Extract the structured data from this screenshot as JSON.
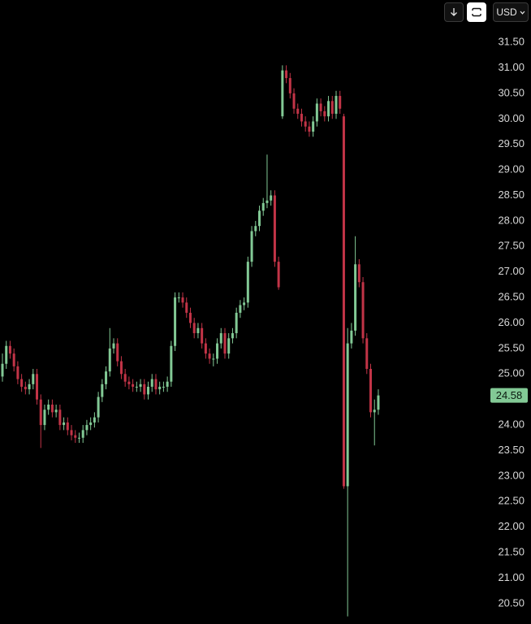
{
  "toolbar": {
    "currency": "USD"
  },
  "chart_data": {
    "type": "candlestick",
    "ylim": [
      20.1,
      32.33
    ],
    "yticks": [
      {
        "value": 20.5,
        "label": "20.50"
      },
      {
        "value": 21,
        "label": "21.00"
      },
      {
        "value": 21.5,
        "label": "21.50"
      },
      {
        "value": 22,
        "label": "22.00"
      },
      {
        "value": 22.5,
        "label": "22.50"
      },
      {
        "value": 23,
        "label": "23.00"
      },
      {
        "value": 23.5,
        "label": "23.50"
      },
      {
        "value": 24,
        "label": "24.00"
      },
      {
        "value": 24.5,
        "label": "24.50"
      },
      {
        "value": 25,
        "label": "25.00"
      },
      {
        "value": 25.5,
        "label": "25.50"
      },
      {
        "value": 26,
        "label": "26.00"
      },
      {
        "value": 26.5,
        "label": "26.50"
      },
      {
        "value": 27,
        "label": "27.00"
      },
      {
        "value": 27.5,
        "label": "27.50"
      },
      {
        "value": 28,
        "label": "28.00"
      },
      {
        "value": 28.5,
        "label": "28.50"
      },
      {
        "value": 29,
        "label": "29.00"
      },
      {
        "value": 29.5,
        "label": "29.50"
      },
      {
        "value": 30,
        "label": "30.00"
      },
      {
        "value": 30.5,
        "label": "30.50"
      },
      {
        "value": 31,
        "label": "31.00"
      },
      {
        "value": 31.5,
        "label": "31.50"
      }
    ],
    "up_color": "#82c995",
    "down_color": "#c23447",
    "open": [
      24.95,
      25.2,
      25.55,
      25.4,
      25.15,
      24.9,
      24.75,
      24.7,
      24.8,
      25.0,
      24.5,
      24.0,
      24.3,
      24.4,
      24.25,
      24.3,
      24.0,
      24.05,
      23.9,
      23.8,
      23.75,
      23.75,
      23.9,
      24.0,
      24.05,
      24.15,
      24.55,
      24.8,
      25.05,
      25.5,
      25.6,
      25.25,
      25.0,
      24.85,
      24.8,
      24.75,
      24.75,
      24.8,
      24.6,
      24.75,
      24.9,
      24.7,
      24.75,
      24.75,
      24.85,
      25.55,
      26.5,
      26.5,
      26.4,
      26.2,
      26.0,
      25.8,
      25.9,
      25.6,
      25.4,
      25.3,
      25.3,
      25.6,
      25.8,
      25.4,
      25.7,
      25.8,
      26.2,
      26.35,
      26.4,
      27.2,
      27.8,
      27.9,
      28.2,
      28.35,
      28.4,
      28.5,
      27.2,
      30.05,
      30.95,
      30.8,
      30.5,
      30.2,
      30.1,
      29.95,
      29.85,
      29.75,
      29.95,
      30.3,
      30.15,
      30.05,
      30.35,
      30.1,
      30.45,
      30.05,
      22.8,
      25.6,
      25.85,
      27.15,
      26.8,
      25.7,
      25.1,
      24.25,
      24.3
    ],
    "high": [
      25.4,
      25.65,
      25.65,
      25.5,
      25.25,
      25.0,
      24.85,
      24.9,
      25.1,
      25.1,
      24.6,
      24.4,
      24.5,
      24.5,
      24.4,
      24.4,
      24.15,
      24.15,
      24.0,
      23.9,
      23.85,
      24.0,
      24.1,
      24.15,
      24.25,
      24.65,
      24.9,
      25.15,
      25.9,
      25.7,
      25.7,
      25.35,
      25.1,
      24.95,
      24.9,
      24.85,
      24.9,
      24.9,
      24.85,
      25.0,
      25.0,
      24.85,
      24.85,
      24.95,
      25.65,
      26.6,
      26.6,
      26.6,
      26.5,
      26.3,
      26.1,
      26.0,
      26.0,
      25.7,
      25.5,
      25.4,
      25.7,
      25.9,
      25.9,
      25.8,
      25.9,
      26.3,
      26.45,
      26.5,
      27.3,
      27.9,
      28.0,
      28.3,
      28.45,
      29.3,
      28.6,
      28.6,
      27.3,
      31.05,
      31.05,
      30.9,
      30.6,
      30.3,
      30.2,
      30.05,
      29.95,
      30.05,
      30.4,
      30.4,
      30.25,
      30.45,
      30.45,
      30.55,
      30.55,
      30.1,
      25.9,
      26.0,
      27.7,
      27.25,
      26.9,
      25.8,
      25.2,
      24.5,
      24.7
    ],
    "low": [
      24.85,
      25.1,
      25.3,
      25.05,
      24.8,
      24.65,
      24.6,
      24.6,
      24.7,
      24.4,
      23.55,
      23.9,
      24.2,
      24.15,
      24.15,
      23.9,
      23.9,
      23.8,
      23.7,
      23.65,
      23.65,
      23.65,
      23.8,
      23.9,
      23.95,
      24.05,
      24.45,
      24.7,
      24.95,
      25.4,
      25.15,
      24.9,
      24.75,
      24.7,
      24.65,
      24.65,
      24.65,
      24.5,
      24.5,
      24.65,
      24.6,
      24.6,
      24.65,
      24.65,
      24.75,
      25.45,
      26.4,
      26.3,
      26.1,
      25.9,
      25.7,
      25.7,
      25.5,
      25.3,
      25.2,
      25.15,
      25.2,
      25.5,
      25.3,
      25.3,
      25.6,
      25.7,
      26.1,
      26.25,
      26.3,
      27.1,
      27.7,
      27.8,
      28.1,
      28.25,
      28.3,
      27.1,
      26.65,
      30.0,
      30.7,
      30.4,
      30.1,
      30.0,
      29.85,
      29.75,
      29.65,
      29.65,
      29.85,
      30.05,
      29.95,
      29.95,
      30.0,
      30.0,
      30.1,
      22.75,
      20.25,
      25.5,
      25.75,
      26.7,
      25.6,
      25.0,
      24.15,
      23.6,
      24.2
    ],
    "close": [
      25.2,
      25.55,
      25.4,
      25.15,
      24.9,
      24.75,
      24.7,
      24.8,
      25.0,
      24.5,
      24.0,
      24.3,
      24.4,
      24.25,
      24.3,
      24.0,
      24.05,
      23.9,
      23.8,
      23.75,
      23.75,
      23.9,
      24.0,
      24.05,
      24.15,
      24.55,
      24.8,
      25.05,
      25.5,
      25.6,
      25.25,
      25.0,
      24.85,
      24.8,
      24.75,
      24.75,
      24.8,
      24.6,
      24.75,
      24.9,
      24.7,
      24.75,
      24.75,
      24.85,
      25.55,
      26.5,
      26.5,
      26.4,
      26.2,
      26.0,
      25.8,
      25.9,
      25.6,
      25.4,
      25.3,
      25.3,
      25.6,
      25.8,
      25.4,
      25.7,
      25.8,
      26.2,
      26.35,
      26.4,
      27.2,
      27.8,
      27.9,
      28.2,
      28.35,
      28.4,
      28.5,
      27.2,
      26.7,
      30.95,
      30.8,
      30.5,
      30.2,
      30.1,
      29.95,
      29.85,
      29.75,
      29.95,
      30.3,
      30.15,
      30.05,
      30.35,
      30.1,
      30.45,
      30.2,
      22.8,
      25.6,
      25.85,
      27.15,
      26.8,
      25.7,
      25.1,
      24.25,
      24.3,
      24.58
    ],
    "last_price": 24.58,
    "last_price_color": "#82c995"
  }
}
